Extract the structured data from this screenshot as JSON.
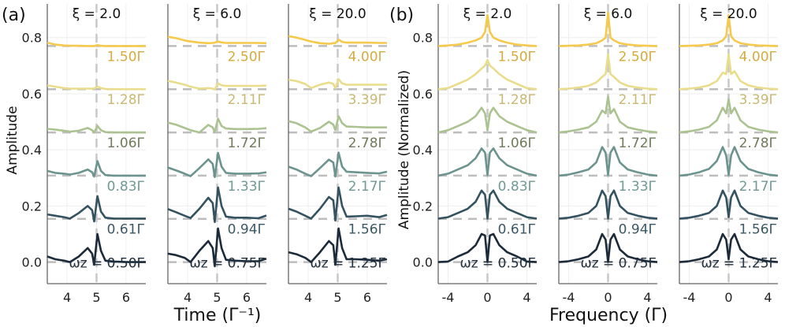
{
  "panel_labels": {
    "a": "(a)",
    "b": "(b)"
  },
  "ylabels": {
    "a": "Amplitude",
    "b": "Amplitude (Normalized)"
  },
  "xlabels": {
    "a": "Time (Γ⁻¹)",
    "b": "Frequency (Γ)"
  },
  "colors": {
    "lines": [
      "#1c2b3a",
      "#34525f",
      "#6c948f",
      "#abc291",
      "#e9dd8c",
      "#f5c94c"
    ],
    "labels": [
      "#22313f",
      "#3b5866",
      "#6f9a94",
      "#6f7b5a",
      "#c9b974",
      "#d5ab3f"
    ],
    "baseline": "#bdbdbd",
    "grid": "#eeeeee",
    "axis": "#666666"
  },
  "chart_data": [
    {
      "type": "line",
      "group": "a",
      "title": "ξ = 2.0",
      "xlim": [
        3.33,
        6.67
      ],
      "ylim": [
        -0.077,
        0.92
      ],
      "xticks": [
        "4",
        "5",
        "6"
      ],
      "xtick_values": [
        4,
        5,
        6
      ],
      "yticks": [
        "0.0",
        "0.2",
        "0.4",
        "0.6",
        "0.8"
      ],
      "ytick_values": [
        0,
        0.2,
        0.4,
        0.6,
        0.8
      ],
      "vline": 5,
      "grid": true,
      "x": [
        3.33,
        3.6,
        3.9,
        4.1,
        4.4,
        4.7,
        4.85,
        4.92,
        5.03,
        5.15,
        5.3,
        5.6,
        6.0,
        6.4,
        6.67
      ],
      "series": [
        {
          "name": "ωz = 0.50Γ",
          "baseline": 0,
          "values": [
            0.02,
            0.01,
            0.005,
            0.0,
            0.02,
            0.05,
            0.03,
            -0.01,
            0.1,
            0.04,
            0.005,
            0.002,
            0.0,
            0.0,
            0.0
          ]
        },
        {
          "name": "0.61Γ",
          "baseline": 0.154,
          "values": [
            0.17,
            0.165,
            0.16,
            0.155,
            0.175,
            0.2,
            0.185,
            0.145,
            0.235,
            0.18,
            0.158,
            0.155,
            0.155,
            0.155,
            0.155
          ]
        },
        {
          "name": "0.83Γ",
          "baseline": 0.308,
          "values": [
            0.325,
            0.318,
            0.315,
            0.312,
            0.318,
            0.33,
            0.32,
            0.305,
            0.36,
            0.325,
            0.31,
            0.308,
            0.308,
            0.308,
            0.308
          ]
        },
        {
          "name": "1.06Γ",
          "baseline": 0.462,
          "values": [
            0.475,
            0.472,
            0.468,
            0.465,
            0.468,
            0.478,
            0.47,
            0.462,
            0.485,
            0.47,
            0.463,
            0.462,
            0.462,
            0.462,
            0.462
          ]
        },
        {
          "name": "1.28Γ",
          "baseline": 0.616,
          "values": [
            0.63,
            0.625,
            0.62,
            0.618,
            0.618,
            0.618,
            0.618,
            0.618,
            0.626,
            0.62,
            0.617,
            0.616,
            0.616,
            0.616,
            0.616
          ]
        },
        {
          "name": "1.50Γ",
          "baseline": 0.77,
          "values": [
            0.782,
            0.775,
            0.772,
            0.771,
            0.771,
            0.77,
            0.77,
            0.77,
            0.773,
            0.771,
            0.77,
            0.77,
            0.77,
            0.77,
            0.77
          ]
        }
      ]
    },
    {
      "type": "line",
      "group": "a",
      "title": "ξ = 6.0",
      "xlim": [
        3.33,
        6.67
      ],
      "ylim": [
        -0.077,
        0.92
      ],
      "xticks": [
        "4",
        "5",
        "6"
      ],
      "xtick_values": [
        4,
        5,
        6
      ],
      "vline": 5,
      "grid": true,
      "x": [
        3.33,
        3.6,
        3.9,
        4.1,
        4.4,
        4.7,
        4.85,
        4.92,
        5.03,
        5.15,
        5.3,
        5.6,
        6.0,
        6.4,
        6.67
      ],
      "series": [
        {
          "name": "ωz = 0.75Γ",
          "baseline": 0,
          "values": [
            0.03,
            0.025,
            0.015,
            0.0,
            0.04,
            0.075,
            0.05,
            -0.015,
            0.12,
            0.05,
            0.008,
            0.005,
            0.003,
            0.003,
            0.012
          ]
        },
        {
          "name": "0.94Γ",
          "baseline": 0.154,
          "values": [
            0.189,
            0.178,
            0.165,
            0.157,
            0.19,
            0.229,
            0.21,
            0.143,
            0.266,
            0.2,
            0.162,
            0.158,
            0.158,
            0.156,
            0.166
          ]
        },
        {
          "name": "1.33Γ",
          "baseline": 0.308,
          "values": [
            0.337,
            0.327,
            0.315,
            0.306,
            0.335,
            0.366,
            0.35,
            0.303,
            0.389,
            0.34,
            0.318,
            0.315,
            0.315,
            0.316,
            0.32
          ]
        },
        {
          "name": "1.72Γ",
          "baseline": 0.462,
          "values": [
            0.497,
            0.49,
            0.478,
            0.47,
            0.462,
            0.489,
            0.48,
            0.463,
            0.511,
            0.485,
            0.476,
            0.474,
            0.474,
            0.475,
            0.477
          ]
        },
        {
          "name": "2.11Γ",
          "baseline": 0.616,
          "values": [
            0.646,
            0.64,
            0.632,
            0.625,
            0.618,
            0.62,
            0.618,
            0.615,
            0.637,
            0.63,
            0.628,
            0.628,
            0.628,
            0.628,
            0.629
          ]
        },
        {
          "name": "2.50Γ",
          "baseline": 0.77,
          "values": [
            0.803,
            0.798,
            0.79,
            0.786,
            0.782,
            0.78,
            0.781,
            0.782,
            0.786,
            0.783,
            0.781,
            0.781,
            0.781,
            0.781,
            0.78
          ]
        }
      ]
    },
    {
      "type": "line",
      "group": "a",
      "title": "ξ = 20.0",
      "xlim": [
        3.33,
        6.67
      ],
      "ylim": [
        -0.077,
        0.92
      ],
      "xticks": [
        "4",
        "5",
        "6"
      ],
      "xtick_values": [
        4,
        5,
        6
      ],
      "vline": 5,
      "grid": true,
      "x": [
        3.33,
        3.6,
        3.9,
        4.1,
        4.4,
        4.7,
        4.85,
        4.92,
        5.03,
        5.15,
        5.3,
        5.6,
        6.0,
        6.4,
        6.67
      ],
      "series": [
        {
          "name": "ωz = 1.25Γ",
          "baseline": 0,
          "values": [
            0.035,
            0.028,
            0.015,
            0.0,
            0.035,
            0.075,
            0.06,
            -0.01,
            0.12,
            0.05,
            0.01,
            0.01,
            0.008,
            0.005,
            0.01
          ]
        },
        {
          "name": "1.56Γ",
          "baseline": 0.154,
          "values": [
            0.19,
            0.18,
            0.165,
            0.155,
            0.19,
            0.232,
            0.22,
            0.148,
            0.266,
            0.2,
            0.162,
            0.163,
            0.165,
            0.16,
            0.168
          ]
        },
        {
          "name": "2.17Γ",
          "baseline": 0.308,
          "values": [
            0.34,
            0.33,
            0.315,
            0.306,
            0.335,
            0.365,
            0.355,
            0.305,
            0.39,
            0.34,
            0.322,
            0.32,
            0.318,
            0.316,
            0.322
          ]
        },
        {
          "name": "2.78Γ",
          "baseline": 0.462,
          "values": [
            0.502,
            0.495,
            0.48,
            0.465,
            0.478,
            0.5,
            0.49,
            0.47,
            0.52,
            0.495,
            0.483,
            0.482,
            0.48,
            0.48,
            0.48
          ]
        },
        {
          "name": "3.39Γ",
          "baseline": 0.616,
          "values": [
            0.65,
            0.645,
            0.635,
            0.62,
            0.632,
            0.64,
            0.635,
            0.62,
            0.652,
            0.637,
            0.632,
            0.632,
            0.632,
            0.632,
            0.632
          ]
        },
        {
          "name": "4.00Γ",
          "baseline": 0.77,
          "values": [
            0.805,
            0.8,
            0.792,
            0.786,
            0.78,
            0.778,
            0.78,
            0.78,
            0.793,
            0.785,
            0.782,
            0.782,
            0.782,
            0.781,
            0.781
          ]
        }
      ]
    },
    {
      "type": "line",
      "group": "b",
      "title": "ξ = 2.0",
      "xlim": [
        -5,
        5
      ],
      "ylim": [
        -0.077,
        0.92
      ],
      "xticks": [
        "-4",
        "0",
        "4"
      ],
      "xtick_values": [
        -4,
        0,
        4
      ],
      "yticks": [
        "0.0",
        "0.2",
        "0.4",
        "0.6",
        "0.8"
      ],
      "ytick_values": [
        0,
        0.2,
        0.4,
        0.6,
        0.8
      ],
      "vline": 0,
      "grid": true,
      "x": [
        -5,
        -4,
        -3,
        -2,
        -1.2,
        -0.6,
        -0.25,
        0,
        0.25,
        0.6,
        1.2,
        2,
        3,
        4,
        5
      ],
      "series": [
        {
          "name": "ωz = 0.50Γ",
          "baseline": 0,
          "values": [
            0,
            0.002,
            0.02,
            0.035,
            0.06,
            0.1,
            0.095,
            0.0,
            0.095,
            0.1,
            0.06,
            0.035,
            0.02,
            0.002,
            0
          ]
        },
        {
          "name": "0.61Γ",
          "baseline": 0.154,
          "values": [
            0.155,
            0.16,
            0.175,
            0.19,
            0.215,
            0.255,
            0.24,
            0.155,
            0.24,
            0.255,
            0.215,
            0.19,
            0.175,
            0.16,
            0.155
          ]
        },
        {
          "name": "0.83Γ",
          "baseline": 0.308,
          "values": [
            0.308,
            0.315,
            0.33,
            0.345,
            0.37,
            0.405,
            0.39,
            0.31,
            0.39,
            0.405,
            0.37,
            0.345,
            0.33,
            0.315,
            0.308
          ]
        },
        {
          "name": "1.06Γ",
          "baseline": 0.462,
          "values": [
            0.462,
            0.47,
            0.485,
            0.5,
            0.52,
            0.55,
            0.53,
            0.47,
            0.53,
            0.55,
            0.52,
            0.5,
            0.485,
            0.47,
            0.462
          ]
        },
        {
          "name": "1.28Γ",
          "baseline": 0.616,
          "values": [
            0.616,
            0.62,
            0.635,
            0.65,
            0.67,
            0.69,
            0.7,
            0.72,
            0.7,
            0.69,
            0.67,
            0.65,
            0.635,
            0.62,
            0.616
          ]
        },
        {
          "name": "1.50Γ",
          "baseline": 0.77,
          "values": [
            0.77,
            0.772,
            0.775,
            0.782,
            0.79,
            0.8,
            0.82,
            0.88,
            0.82,
            0.8,
            0.79,
            0.782,
            0.775,
            0.772,
            0.77
          ]
        }
      ]
    },
    {
      "type": "line",
      "group": "b",
      "title": "ξ = 6.0",
      "xlim": [
        -5,
        5
      ],
      "ylim": [
        -0.077,
        0.92
      ],
      "xticks": [
        "-4",
        "0",
        "4"
      ],
      "xtick_values": [
        -4,
        0,
        4
      ],
      "vline": 0,
      "grid": true,
      "x": [
        -5,
        -4,
        -3,
        -2,
        -1.2,
        -0.6,
        -0.25,
        0,
        0.25,
        0.6,
        1.2,
        2,
        3,
        4,
        5
      ],
      "series": [
        {
          "name": "ωz = 0.75Γ",
          "baseline": 0,
          "values": [
            0,
            0.003,
            0.01,
            0.02,
            0.045,
            0.1,
            0.08,
            0.0,
            0.08,
            0.1,
            0.045,
            0.02,
            0.01,
            0.003,
            0
          ]
        },
        {
          "name": "0.94Γ",
          "baseline": 0.154,
          "values": [
            0.155,
            0.158,
            0.165,
            0.175,
            0.2,
            0.255,
            0.235,
            0.155,
            0.235,
            0.255,
            0.2,
            0.175,
            0.165,
            0.158,
            0.155
          ]
        },
        {
          "name": "1.33Γ",
          "baseline": 0.308,
          "values": [
            0.308,
            0.312,
            0.32,
            0.33,
            0.355,
            0.41,
            0.39,
            0.31,
            0.39,
            0.41,
            0.355,
            0.33,
            0.32,
            0.312,
            0.308
          ]
        },
        {
          "name": "1.72Γ",
          "baseline": 0.462,
          "values": [
            0.462,
            0.466,
            0.472,
            0.48,
            0.5,
            0.54,
            0.53,
            0.59,
            0.53,
            0.545,
            0.5,
            0.48,
            0.472,
            0.466,
            0.462
          ]
        },
        {
          "name": "2.11Γ",
          "baseline": 0.616,
          "values": [
            0.616,
            0.618,
            0.622,
            0.628,
            0.64,
            0.66,
            0.67,
            0.74,
            0.67,
            0.66,
            0.64,
            0.628,
            0.622,
            0.618,
            0.616
          ]
        },
        {
          "name": "2.50Γ",
          "baseline": 0.77,
          "values": [
            0.77,
            0.771,
            0.772,
            0.775,
            0.78,
            0.79,
            0.8,
            0.89,
            0.8,
            0.79,
            0.78,
            0.775,
            0.772,
            0.771,
            0.77
          ]
        }
      ]
    },
    {
      "type": "line",
      "group": "b",
      "title": "ξ = 20.0",
      "xlim": [
        -5,
        5
      ],
      "ylim": [
        -0.077,
        0.92
      ],
      "xticks": [
        "-4",
        "0",
        "4"
      ],
      "xtick_values": [
        -4,
        0,
        4
      ],
      "vline": 0,
      "grid": true,
      "x": [
        -5,
        -4,
        -3,
        -2,
        -1.2,
        -0.6,
        -0.25,
        0,
        0.25,
        0.6,
        1.2,
        2,
        3,
        4,
        5
      ],
      "series": [
        {
          "name": "ωz = 1.25Γ",
          "baseline": 0,
          "values": [
            0,
            0.003,
            0.01,
            0.02,
            0.045,
            0.1,
            0.08,
            0.01,
            0.08,
            0.1,
            0.045,
            0.02,
            0.01,
            0.003,
            0
          ]
        },
        {
          "name": "1.56Γ",
          "baseline": 0.154,
          "values": [
            0.155,
            0.158,
            0.165,
            0.175,
            0.2,
            0.255,
            0.23,
            0.16,
            0.23,
            0.255,
            0.2,
            0.175,
            0.165,
            0.158,
            0.155
          ]
        },
        {
          "name": "2.17Γ",
          "baseline": 0.308,
          "values": [
            0.308,
            0.312,
            0.32,
            0.332,
            0.36,
            0.41,
            0.38,
            0.31,
            0.38,
            0.41,
            0.36,
            0.332,
            0.32,
            0.312,
            0.308
          ]
        },
        {
          "name": "2.78Γ",
          "baseline": 0.462,
          "values": [
            0.462,
            0.466,
            0.472,
            0.482,
            0.505,
            0.55,
            0.53,
            0.58,
            0.53,
            0.55,
            0.505,
            0.482,
            0.472,
            0.466,
            0.462
          ]
        },
        {
          "name": "3.39Γ",
          "baseline": 0.616,
          "values": [
            0.616,
            0.618,
            0.622,
            0.63,
            0.645,
            0.675,
            0.67,
            0.74,
            0.67,
            0.68,
            0.645,
            0.63,
            0.622,
            0.618,
            0.616
          ]
        },
        {
          "name": "4.00Γ",
          "baseline": 0.77,
          "values": [
            0.77,
            0.771,
            0.772,
            0.775,
            0.78,
            0.79,
            0.805,
            0.88,
            0.805,
            0.79,
            0.78,
            0.775,
            0.772,
            0.771,
            0.77
          ]
        }
      ]
    }
  ]
}
